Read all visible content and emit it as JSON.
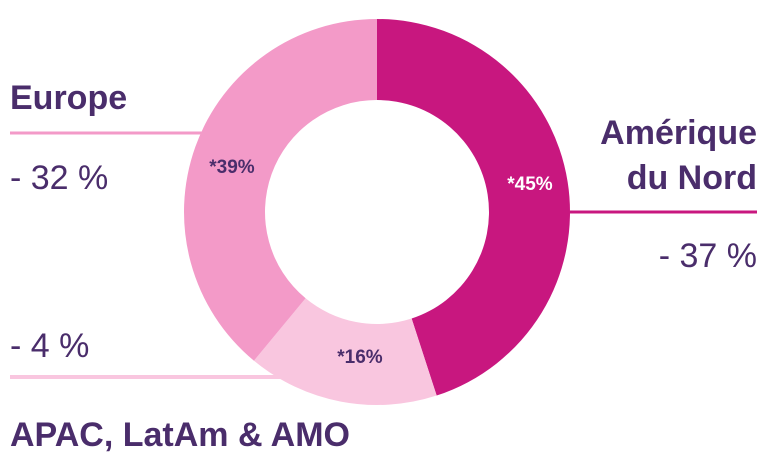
{
  "chart_data": {
    "type": "pie",
    "donut": true,
    "categories": [
      "Amérique du Nord",
      "APAC, LatAm & AMO",
      "Europe"
    ],
    "values": [
      45,
      16,
      39
    ],
    "value_labels": [
      "*45%",
      "*16%",
      "*39%"
    ],
    "colors": [
      "#c8177f",
      "#f9c6df",
      "#f39ac8"
    ],
    "changes": [
      "- 37 %",
      "- 4 %",
      "- 32 %"
    ]
  }
}
